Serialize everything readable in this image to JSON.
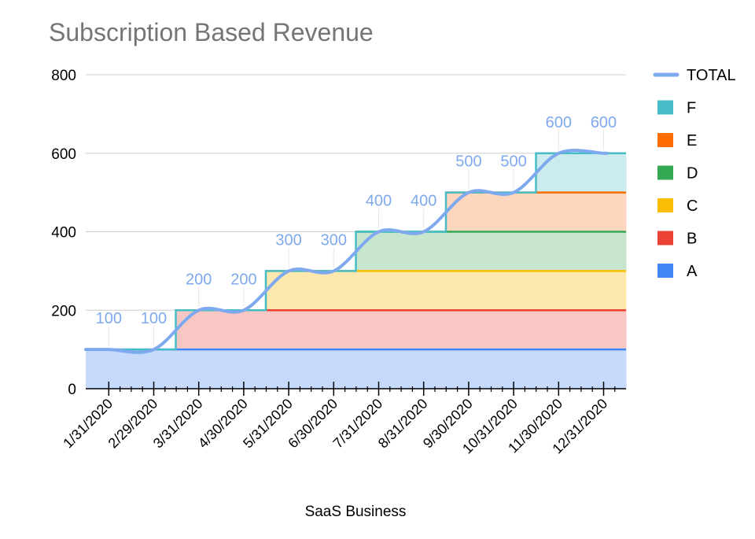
{
  "chart_data": {
    "type": "area",
    "title": "Subscription Based Revenue",
    "xlabel": "SaaS Business",
    "ylabel": "",
    "ylim": [
      0,
      800
    ],
    "yticks": [
      0,
      200,
      400,
      600,
      800
    ],
    "grid": true,
    "legend_position": "right",
    "categories": [
      "1/31/2020",
      "2/29/2020",
      "3/31/2020",
      "4/30/2020",
      "5/31/2020",
      "6/30/2020",
      "7/31/2020",
      "8/31/2020",
      "9/30/2020",
      "10/31/2020",
      "11/30/2020",
      "12/31/2020"
    ],
    "series": [
      {
        "name": "A",
        "kind": "stepped-area",
        "color": "#4285f4",
        "fill": "#c6dafc",
        "values": [
          100,
          100,
          100,
          100,
          100,
          100,
          100,
          100,
          100,
          100,
          100,
          100
        ]
      },
      {
        "name": "B",
        "kind": "stepped-area",
        "color": "#ea4335",
        "fill": "#f8c7c3",
        "values": [
          0,
          0,
          100,
          100,
          100,
          100,
          100,
          100,
          100,
          100,
          100,
          100
        ]
      },
      {
        "name": "C",
        "kind": "stepped-area",
        "color": "#fbbc04",
        "fill": "#fde9b0",
        "values": [
          0,
          0,
          0,
          0,
          100,
          100,
          100,
          100,
          100,
          100,
          100,
          100
        ]
      },
      {
        "name": "D",
        "kind": "stepped-area",
        "color": "#34a853",
        "fill": "#c8e6cd",
        "values": [
          0,
          0,
          0,
          0,
          0,
          0,
          100,
          100,
          100,
          100,
          100,
          100
        ]
      },
      {
        "name": "E",
        "kind": "stepped-area",
        "color": "#ff6d01",
        "fill": "#fdd6bd",
        "values": [
          0,
          0,
          0,
          0,
          0,
          0,
          0,
          0,
          100,
          100,
          100,
          100
        ]
      },
      {
        "name": "F",
        "kind": "stepped-area",
        "color": "#46bdc6",
        "fill": "#cbebee",
        "values": [
          0,
          0,
          0,
          0,
          0,
          0,
          0,
          0,
          0,
          0,
          100,
          100
        ]
      },
      {
        "name": "TOTAL",
        "kind": "line",
        "color": "#7ea9ee",
        "values": [
          100,
          100,
          200,
          200,
          300,
          300,
          400,
          400,
          500,
          500,
          600,
          600
        ]
      }
    ],
    "data_labels": [
      "100",
      "100",
      "200",
      "200",
      "300",
      "300",
      "400",
      "400",
      "500",
      "500",
      "600",
      "600"
    ],
    "legend_order": [
      "TOTAL",
      "F",
      "E",
      "D",
      "C",
      "B",
      "A"
    ]
  }
}
